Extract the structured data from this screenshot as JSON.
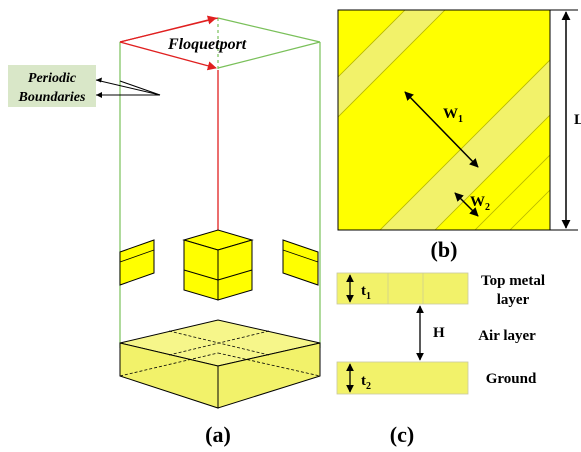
{
  "colors": {
    "metal": "#ffff00",
    "metal_light": "#f2f26a",
    "port_arrow": "#e02020",
    "boundary_line": "#7ac05a",
    "label_box": "#d9e7c8",
    "black": "#000000"
  },
  "panel_a": {
    "port_label": "Floquetport",
    "boundary_label_line1": "Periodic",
    "boundary_label_line2": "Boundaries",
    "caption": "(a)"
  },
  "panel_b": {
    "w1_label": "W",
    "w1_sub": "1",
    "w2_label": "W",
    "w2_sub": "2",
    "edge_label": "L",
    "caption": "(b)"
  },
  "panel_c": {
    "top_layer_line1": "Top metal",
    "top_layer_line2": "layer",
    "t1_label": "t",
    "t1_sub": "1",
    "h_label": "H",
    "air_layer": "Air layer",
    "t2_label": "t",
    "t2_sub": "2",
    "ground_label": "Ground",
    "caption": "(c)"
  }
}
